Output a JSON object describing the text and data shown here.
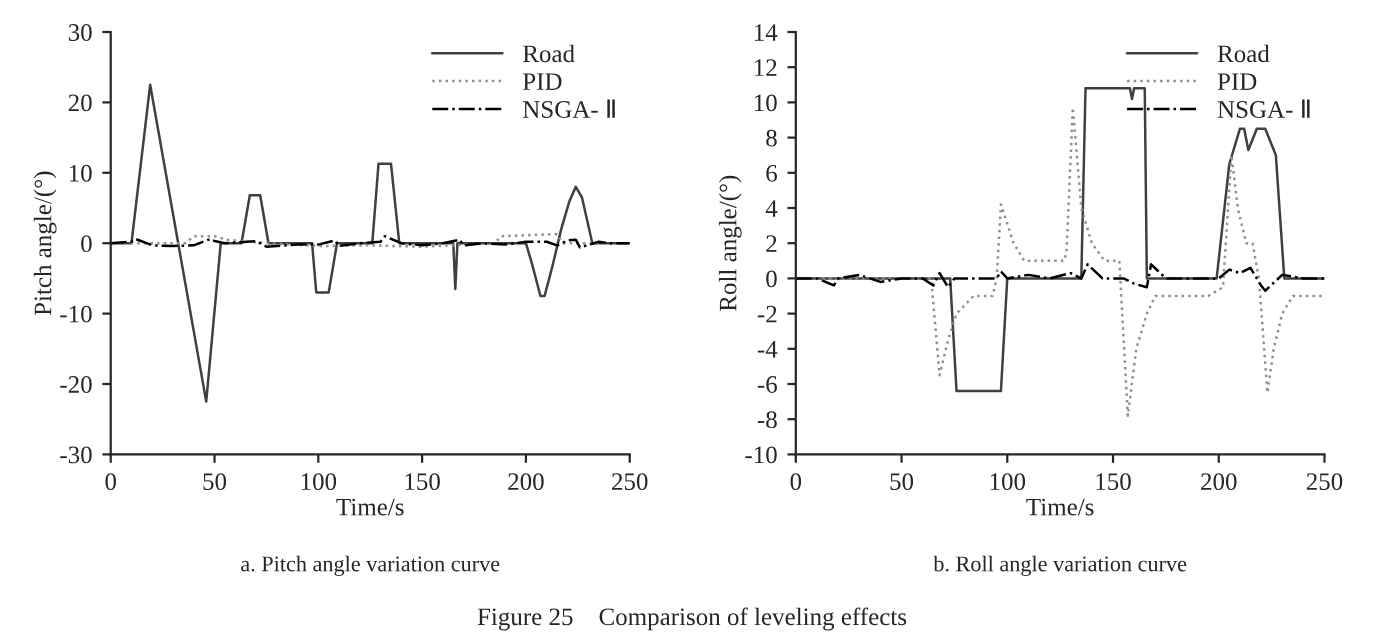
{
  "chart_data": [
    {
      "type": "line",
      "title": "a. Pitch angle variation curve",
      "xlabel": "Time/s",
      "ylabel": "Pitch angle/(°)",
      "annotations": [
        "Figure 25    Comparison of leveling effects"
      ],
      "xlim": [
        0,
        250
      ],
      "xticks": [
        0,
        50,
        100,
        150,
        200,
        250
      ],
      "ylim": [
        -30,
        30
      ],
      "yticks": [
        -30,
        -20,
        -10,
        0,
        10,
        20,
        30
      ],
      "grid": false,
      "legend": "top right",
      "marker": "none",
      "series": [
        {
          "name": "Road",
          "color": "#404040",
          "line_style": "solid",
          "x": [
            0,
            10,
            19,
            46,
            53,
            63,
            67,
            72,
            76,
            97,
            99,
            105,
            109,
            126,
            129,
            135,
            139,
            165,
            166,
            167,
            200,
            203,
            207,
            209,
            213,
            217,
            221,
            224,
            227,
            232,
            250
          ],
          "values": [
            0,
            0,
            22.5,
            -22.5,
            0,
            0,
            6.8,
            6.8,
            0,
            0,
            -7,
            -7,
            0,
            0,
            11.3,
            11.3,
            0,
            0,
            -6.5,
            0,
            0,
            -3,
            -7.5,
            -7.5,
            -3,
            2,
            6,
            8,
            6.5,
            0,
            0
          ]
        },
        {
          "name": "PID",
          "color": "#909090",
          "line_style": "dotted",
          "x": [
            0,
            36,
            40,
            50,
            56,
            75,
            100,
            125,
            150,
            185,
            188,
            215,
            218,
            250
          ],
          "values": [
            0,
            0,
            1,
            1,
            0.5,
            0,
            -0.4,
            -0.3,
            -0.5,
            0,
            1,
            1.3,
            0,
            0
          ]
        },
        {
          "name": "NSGA- Ⅱ",
          "color": "#000000",
          "line_style": "dashdot",
          "x": [
            0,
            10,
            12,
            20,
            30,
            40,
            48,
            50,
            55,
            70,
            75,
            90,
            100,
            108,
            110,
            120,
            130,
            132,
            140,
            150,
            160,
            168,
            170,
            180,
            190,
            200,
            210,
            215,
            220,
            224,
            226,
            235,
            240,
            250
          ],
          "values": [
            0,
            0.2,
            0.6,
            -0.3,
            -0.4,
            -0.3,
            0.6,
            0.3,
            0,
            0.3,
            -0.5,
            -0.2,
            -0.2,
            0.4,
            -0.4,
            0,
            0.2,
            1,
            0,
            -0.3,
            0,
            0.5,
            -0.3,
            0,
            -0.2,
            0.2,
            0.2,
            -0.3,
            0.4,
            0.5,
            -0.6,
            0.2,
            0,
            0
          ]
        }
      ]
    },
    {
      "type": "line",
      "title": "b. Roll angle variation curve",
      "xlabel": "Time/s",
      "ylabel": "Roll angle/(°)",
      "xlim": [
        0,
        250
      ],
      "xticks": [
        0,
        50,
        100,
        150,
        200,
        250
      ],
      "ylim": [
        -10,
        14
      ],
      "yticks": [
        -10,
        -8,
        -6,
        -4,
        -2,
        0,
        2,
        4,
        6,
        8,
        10,
        12,
        14
      ],
      "grid": false,
      "legend": "top right",
      "marker": "none",
      "series": [
        {
          "name": "Road",
          "color": "#404040",
          "line_style": "solid",
          "x": [
            0,
            73,
            76,
            97,
            100,
            135,
            137,
            158,
            159,
            160,
            165,
            166,
            199,
            205,
            210,
            212,
            214,
            218,
            222,
            227,
            231,
            250
          ],
          "values": [
            0,
            0,
            -6.4,
            -6.4,
            0,
            0,
            10.8,
            10.8,
            10.2,
            10.8,
            10.8,
            0,
            0,
            6.5,
            8.5,
            8.5,
            7.3,
            8.5,
            8.5,
            7,
            0,
            0
          ]
        },
        {
          "name": "PID",
          "color": "#909090",
          "line_style": "dotted",
          "x": [
            0,
            64,
            68,
            72,
            76,
            84,
            93,
            95,
            97,
            103,
            108,
            127,
            128,
            131,
            135,
            140,
            146,
            153,
            157,
            161,
            166,
            170,
            195,
            202,
            206,
            209,
            213,
            216,
            219,
            223,
            226,
            230,
            235,
            250
          ],
          "values": [
            0,
            0,
            -5.5,
            -3.5,
            -2,
            -1,
            -1,
            0,
            4.2,
            2,
            1,
            1,
            1.5,
            9.7,
            4,
            2,
            1,
            1,
            -7.8,
            -4,
            -2,
            -1,
            -1,
            -0.5,
            7,
            4,
            2,
            2,
            0,
            -6.5,
            -4,
            -2,
            -1,
            -1
          ]
        },
        {
          "name": "NSGA- Ⅱ",
          "color": "#000000",
          "line_style": "dashdot",
          "x": [
            0,
            10,
            18,
            20,
            30,
            40,
            50,
            60,
            65,
            68,
            72,
            75,
            85,
            95,
            97,
            100,
            110,
            120,
            130,
            135,
            138,
            145,
            155,
            160,
            166,
            168,
            175,
            190,
            200,
            205,
            210,
            215,
            220,
            222,
            230,
            240,
            250
          ],
          "values": [
            0,
            0,
            -0.4,
            0,
            0.2,
            -0.2,
            0,
            0,
            -0.4,
            0.3,
            -0.5,
            0,
            0,
            0,
            0.4,
            0,
            0.2,
            0,
            0.3,
            0,
            0.8,
            0,
            0,
            -0.3,
            -0.5,
            0.8,
            0,
            0,
            0,
            0.5,
            0.3,
            0.6,
            -0.4,
            -0.7,
            0.2,
            0,
            0
          ]
        }
      ]
    }
  ]
}
